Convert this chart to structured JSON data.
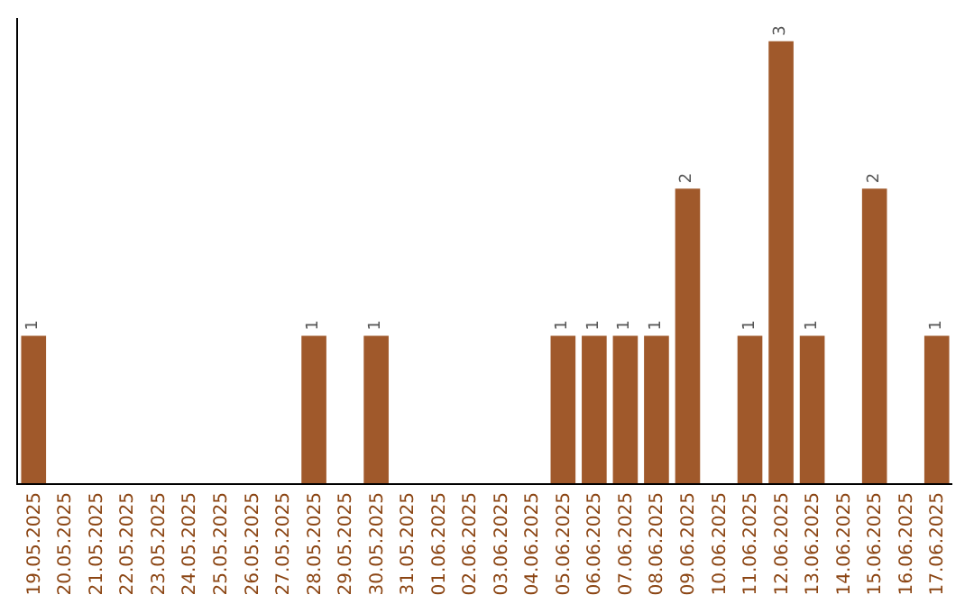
{
  "chart_data": {
    "type": "bar",
    "categories": [
      "19.05.2025",
      "20.05.2025",
      "21.05.2025",
      "22.05.2025",
      "23.05.2025",
      "24.05.2025",
      "25.05.2025",
      "26.05.2025",
      "27.05.2025",
      "28.05.2025",
      "29.05.2025",
      "30.05.2025",
      "31.05.2025",
      "01.06.2025",
      "02.06.2025",
      "03.06.2025",
      "04.06.2025",
      "05.06.2025",
      "06.06.2025",
      "07.06.2025",
      "08.06.2025",
      "09.06.2025",
      "10.06.2025",
      "11.06.2025",
      "12.06.2025",
      "13.06.2025",
      "14.06.2025",
      "15.06.2025",
      "16.06.2025",
      "17.06.2025"
    ],
    "values": [
      1,
      0,
      0,
      0,
      0,
      0,
      0,
      0,
      0,
      1,
      0,
      1,
      0,
      0,
      0,
      0,
      0,
      1,
      1,
      1,
      1,
      2,
      0,
      1,
      3,
      1,
      0,
      2,
      0,
      1
    ],
    "value_labels": [
      "1",
      null,
      null,
      null,
      null,
      null,
      null,
      null,
      null,
      "1",
      null,
      "1",
      null,
      null,
      null,
      null,
      null,
      "1",
      "1",
      "1",
      "1",
      "2",
      null,
      "1",
      "3",
      "1",
      null,
      "2",
      null,
      "1"
    ],
    "color": "#a0592b",
    "tick_labels": "x",
    "legend": false
  }
}
